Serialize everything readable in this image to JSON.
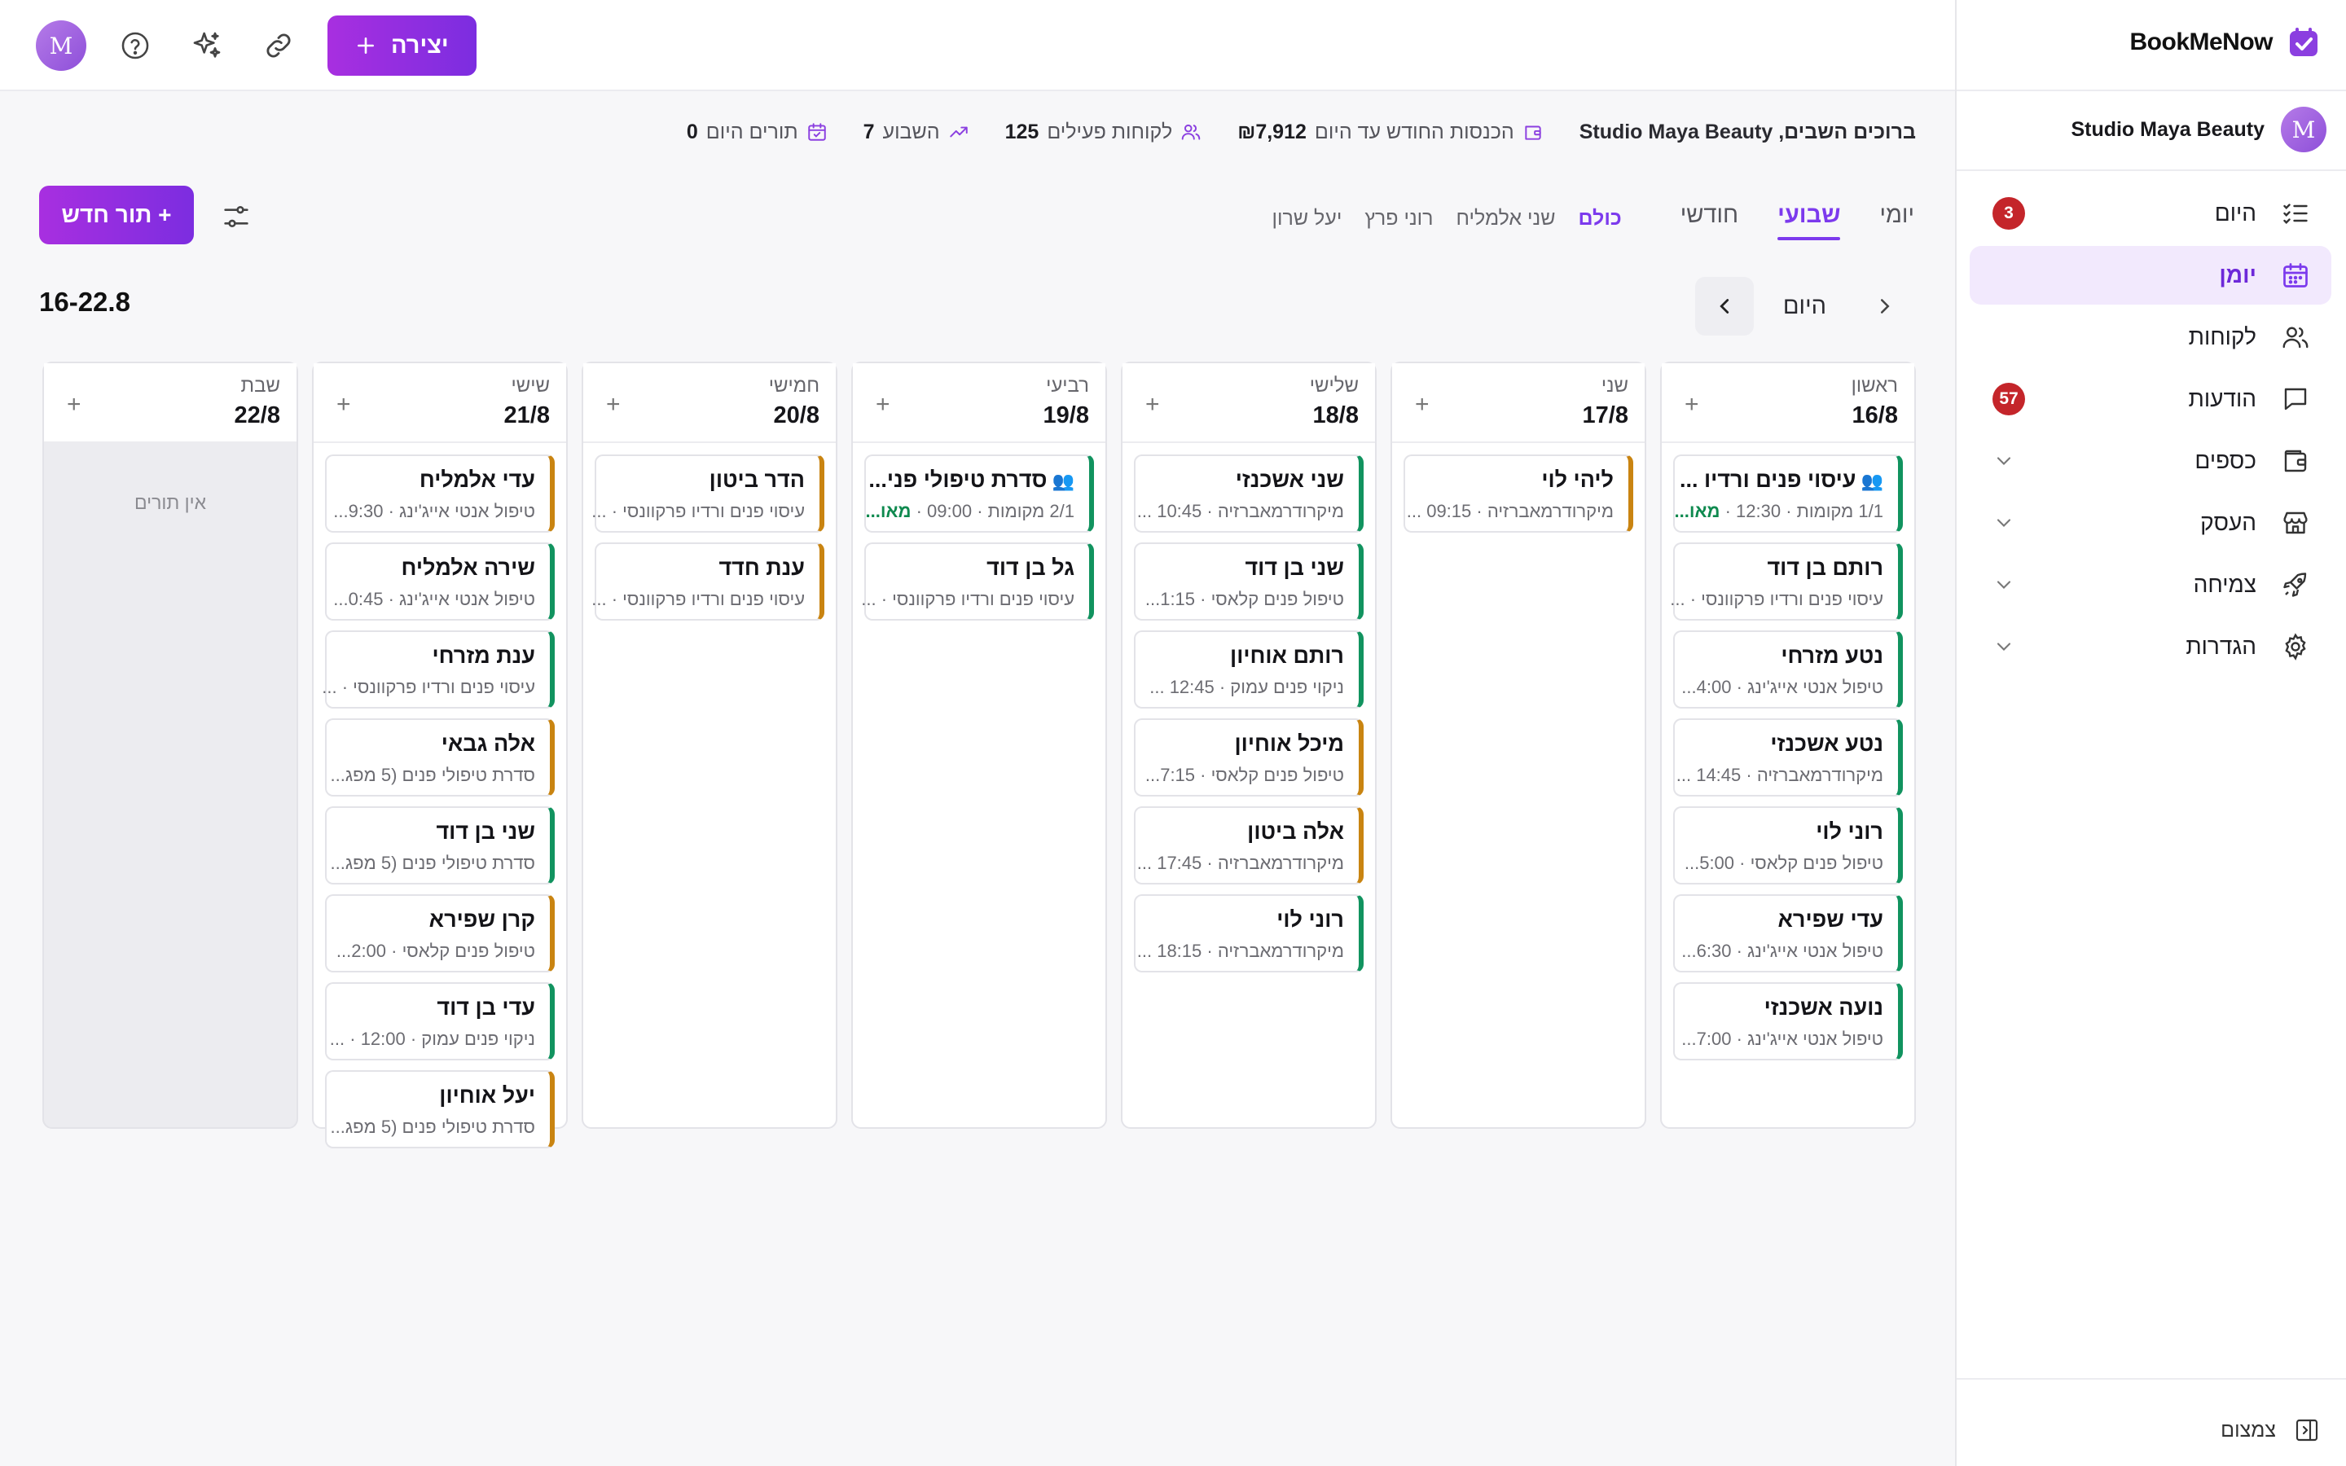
{
  "brand": {
    "name": "BookMeNow"
  },
  "studio": {
    "avatar": "M",
    "name": "Studio Maya Beauty"
  },
  "sidebar": {
    "items": [
      {
        "label": "היום",
        "icon": "checklist-icon",
        "badge": "3"
      },
      {
        "label": "יומן",
        "icon": "calendar-icon",
        "active": true
      },
      {
        "label": "לקוחות",
        "icon": "users-icon"
      },
      {
        "label": "הודעות",
        "icon": "message-icon",
        "badge": "57"
      },
      {
        "label": "כספים",
        "icon": "wallet-icon",
        "expandable": true
      },
      {
        "label": "העסק",
        "icon": "store-icon",
        "expandable": true
      },
      {
        "label": "צמיחה",
        "icon": "rocket-icon",
        "expandable": true
      },
      {
        "label": "הגדרות",
        "icon": "gear-icon",
        "expandable": true
      }
    ],
    "collapse_label": "צמצום"
  },
  "topbar": {
    "create_label": "יצירה",
    "avatar": "M"
  },
  "stats": {
    "welcome": "ברוכים השבים, Studio Maya Beauty",
    "revenue_label": "הכנסות החודש עד היום",
    "revenue_value": "₪7,912",
    "clients_label": "לקוחות פעילים",
    "clients_value": "125",
    "week_label": "השבוע",
    "week_value": "7",
    "today_label": "תורים היום",
    "today_value": "0"
  },
  "views": {
    "tabs": [
      "יומי",
      "שבועי",
      "חודשי"
    ],
    "active_tab": "שבועי",
    "staff": [
      "כולם",
      "שני אלמליח",
      "רוני פרץ",
      "יעל שרון"
    ],
    "active_staff": "כולם"
  },
  "new_appointment_label": "+ תור חדש",
  "date_nav": {
    "today_label": "היום",
    "range": "16-22.8"
  },
  "calendar": {
    "days": [
      {
        "name": "ראשון",
        "date": "16/8",
        "appointments": [
          {
            "title": "עיסוי פנים ורדיו ...",
            "sub": "1/1 מקומות · 12:30 · ",
            "status": "מאו...",
            "group": true,
            "color": "green"
          },
          {
            "title": "רותם בן דוד",
            "sub": "עיסוי פנים ורדיו פרקוונסי · ...",
            "color": "green"
          },
          {
            "title": "נטע מזרחי",
            "sub": "טיפול אנטי אייג'ינג · 4:00...",
            "color": "green"
          },
          {
            "title": "נטע אשכנזי",
            "sub": "מיקרודרמאברזיה · 14:45 ...",
            "color": "green"
          },
          {
            "title": "רוני לוי",
            "sub": "טיפול פנים קלאסי · 5:00...",
            "color": "green"
          },
          {
            "title": "עדי שפירא",
            "sub": "טיפול אנטי אייג'ינג · 6:30...",
            "color": "green"
          },
          {
            "title": "נועה אשכנזי",
            "sub": "טיפול אנטי אייג'ינג · 7:00...",
            "color": "green"
          }
        ]
      },
      {
        "name": "שני",
        "date": "17/8",
        "appointments": [
          {
            "title": "ליהי לוי",
            "sub": "מיקרודרמאברזיה · 09:15 ...",
            "color": "amber"
          }
        ]
      },
      {
        "name": "שלישי",
        "date": "18/8",
        "appointments": [
          {
            "title": "שני אשכנזי",
            "sub": "מיקרודרמאברזיה · 10:45 ...",
            "color": "green"
          },
          {
            "title": "שני בן דוד",
            "sub": "טיפול פנים קלאסי · 1:15...",
            "color": "green"
          },
          {
            "title": "רותם אוחיון",
            "sub": "ניקוי פנים עמוק · 12:45 ...",
            "color": "green"
          },
          {
            "title": "מיכל אוחיון",
            "sub": "טיפול פנים קלאסי · 7:15...",
            "color": "amber"
          },
          {
            "title": "אלה ביטון",
            "sub": "מיקרודרמאברזיה · 17:45 ...",
            "color": "amber"
          },
          {
            "title": "רוני לוי",
            "sub": "מיקרודרמאברזיה · 18:15 ...",
            "color": "green"
          }
        ]
      },
      {
        "name": "רביעי",
        "date": "19/8",
        "appointments": [
          {
            "title": "סדרת טיפולי פני...",
            "sub": "2/1 מקומות · 09:00 · ",
            "status": "מאו...",
            "group": true,
            "color": "green"
          },
          {
            "title": "גל בן דוד",
            "sub": "עיסוי פנים ורדיו פרקוונסי · ...",
            "color": "green"
          }
        ]
      },
      {
        "name": "חמישי",
        "date": "20/8",
        "appointments": [
          {
            "title": "הדר ביטון",
            "sub": "עיסוי פנים ורדיו פרקוונסי · ...",
            "color": "amber"
          },
          {
            "title": "ענת חדד",
            "sub": "עיסוי פנים ורדיו פרקוונסי · ...",
            "color": "amber"
          }
        ]
      },
      {
        "name": "שישי",
        "date": "21/8",
        "appointments": [
          {
            "title": "עדי אלמליח",
            "sub": "טיפול אנטי אייג'ינג · 9:30...",
            "color": "amber"
          },
          {
            "title": "שירה אלמליח",
            "sub": "טיפול אנטי אייג'ינג · 0:45...",
            "color": "green"
          },
          {
            "title": "ענת מזרחי",
            "sub": "עיסוי פנים ורדיו פרקוונסי · ...",
            "color": "green"
          },
          {
            "title": "אלה גבאי",
            "sub": "סדרת טיפולי פנים (5 מפג...",
            "color": "amber"
          },
          {
            "title": "שני בן דוד",
            "sub": "סדרת טיפולי פנים (5 מפג...",
            "color": "green"
          },
          {
            "title": "קרן שפירא",
            "sub": "טיפול פנים קלאסי · 2:00...",
            "color": "amber"
          },
          {
            "title": "עדי בן דוד",
            "sub": "ניקוי פנים עמוק · 12:00 · ...",
            "color": "green"
          },
          {
            "title": "יעל אוחיון",
            "sub": "סדרת טיפולי פנים (5 מפג...",
            "color": "amber"
          }
        ]
      },
      {
        "name": "שבת",
        "date": "22/8",
        "appointments": [],
        "empty": "אין תורים",
        "shabbat": true
      }
    ]
  }
}
